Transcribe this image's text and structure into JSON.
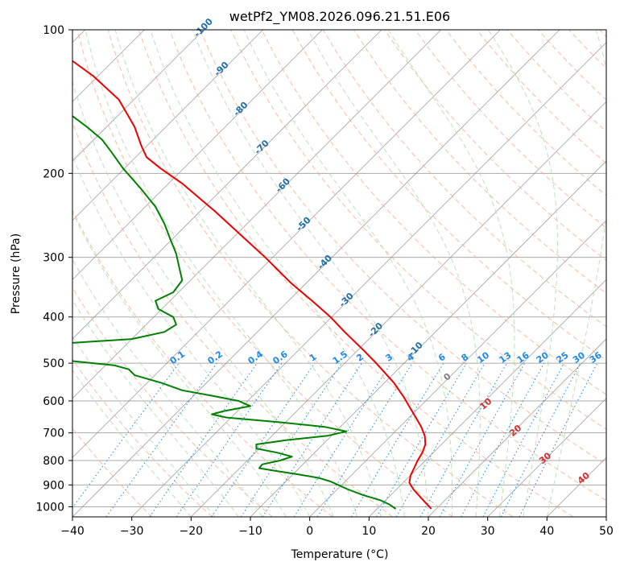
{
  "chart_data": {
    "type": "line",
    "title": "wetPf2_YM08.2026.096.21.51.E06",
    "xlabel": "Temperature (°C)",
    "ylabel": "Pressure (hPa)",
    "xlim": [
      -40,
      50
    ],
    "ylim": [
      1050,
      100
    ],
    "y_scale": "log",
    "skew_deg": 45,
    "grid": true,
    "x_ticks": [
      -40,
      -30,
      -20,
      -10,
      0,
      10,
      20,
      30,
      40,
      50
    ],
    "y_ticks": [
      100,
      200,
      300,
      400,
      500,
      600,
      700,
      800,
      900,
      1000
    ],
    "colors": {
      "temperature": "#ee0000",
      "dewpoint": "#008000",
      "dry_adiabat": "#f4a582",
      "moist_adiabat": "#b2dfb2",
      "mixing_ratio": "#1e88e5",
      "isotherm": "#808080",
      "wetbulb_label": "#d32f2f",
      "isotherm_label": "#1f6fa8"
    },
    "series": [
      {
        "name": "temperature",
        "points": [
          {
            "p": 1010,
            "t": 20.5
          },
          {
            "p": 980,
            "t": 19.5
          },
          {
            "p": 950,
            "t": 18.5
          },
          {
            "p": 920,
            "t": 17.5
          },
          {
            "p": 890,
            "t": 16.8
          },
          {
            "p": 860,
            "t": 17.0
          },
          {
            "p": 830,
            "t": 17.6
          },
          {
            "p": 800,
            "t": 18.2
          },
          {
            "p": 770,
            "t": 19.0
          },
          {
            "p": 740,
            "t": 19.5
          },
          {
            "p": 710,
            "t": 19.4
          },
          {
            "p": 680,
            "t": 18.8
          },
          {
            "p": 650,
            "t": 17.9
          },
          {
            "p": 620,
            "t": 16.9
          },
          {
            "p": 590,
            "t": 15.9
          },
          {
            "p": 550,
            "t": 14.2
          },
          {
            "p": 500,
            "t": 11.2
          },
          {
            "p": 470,
            "t": 9.1
          },
          {
            "p": 430,
            "t": 5.9
          },
          {
            "p": 400,
            "t": 3.5
          },
          {
            "p": 370,
            "t": 0.4
          },
          {
            "p": 340,
            "t": -3.1
          },
          {
            "p": 300,
            "t": -7.5
          },
          {
            "p": 270,
            "t": -11.5
          },
          {
            "p": 240,
            "t": -16.0
          },
          {
            "p": 210,
            "t": -21.5
          },
          {
            "p": 195,
            "t": -25.2
          },
          {
            "p": 185,
            "t": -27.5
          },
          {
            "p": 175,
            "t": -28.4
          },
          {
            "p": 160,
            "t": -29.5
          },
          {
            "p": 150,
            "t": -30.8
          },
          {
            "p": 140,
            "t": -32.2
          },
          {
            "p": 125,
            "t": -36.5
          },
          {
            "p": 115,
            "t": -40.5
          },
          {
            "p": 100,
            "t": -46.5
          }
        ]
      },
      {
        "name": "dewpoint",
        "points": [
          {
            "p": 1010,
            "t": 14.5
          },
          {
            "p": 990,
            "t": 13.5
          },
          {
            "p": 970,
            "t": 12.0
          },
          {
            "p": 945,
            "t": 9.0
          },
          {
            "p": 920,
            "t": 6.5
          },
          {
            "p": 900,
            "t": 4.8
          },
          {
            "p": 885,
            "t": 3.5
          },
          {
            "p": 870,
            "t": 1.5
          },
          {
            "p": 855,
            "t": -2.0
          },
          {
            "p": 840,
            "t": -6.0
          },
          {
            "p": 830,
            "t": -8.5
          },
          {
            "p": 815,
            "t": -8.0
          },
          {
            "p": 800,
            "t": -5.0
          },
          {
            "p": 785,
            "t": -3.0
          },
          {
            "p": 770,
            "t": -5.5
          },
          {
            "p": 755,
            "t": -9.0
          },
          {
            "p": 740,
            "t": -9.0
          },
          {
            "p": 725,
            "t": -4.0
          },
          {
            "p": 710,
            "t": 3.0
          },
          {
            "p": 695,
            "t": 6.2
          },
          {
            "p": 680,
            "t": 2.5
          },
          {
            "p": 665,
            "t": -5.0
          },
          {
            "p": 650,
            "t": -14.0
          },
          {
            "p": 640,
            "t": -16.5
          },
          {
            "p": 630,
            "t": -14.5
          },
          {
            "p": 615,
            "t": -10.0
          },
          {
            "p": 600,
            "t": -12.0
          },
          {
            "p": 585,
            "t": -16.5
          },
          {
            "p": 570,
            "t": -21.5
          },
          {
            "p": 550,
            "t": -25.0
          },
          {
            "p": 530,
            "t": -29.5
          },
          {
            "p": 515,
            "t": -30.5
          },
          {
            "p": 505,
            "t": -33.0
          },
          {
            "p": 495,
            "t": -40.0
          },
          {
            "p": 485,
            "t": -50.0
          },
          {
            "p": 475,
            "t": -58.0
          },
          {
            "p": 468,
            "t": -62.0
          },
          {
            "p": 462,
            "t": -55.0
          },
          {
            "p": 455,
            "t": -42.0
          },
          {
            "p": 445,
            "t": -30.0
          },
          {
            "p": 430,
            "t": -24.5
          },
          {
            "p": 415,
            "t": -22.5
          },
          {
            "p": 400,
            "t": -23.0
          },
          {
            "p": 385,
            "t": -25.5
          },
          {
            "p": 370,
            "t": -26.0
          },
          {
            "p": 355,
            "t": -23.0
          },
          {
            "p": 335,
            "t": -21.5
          },
          {
            "p": 315,
            "t": -22.0
          },
          {
            "p": 295,
            "t": -22.5
          },
          {
            "p": 275,
            "t": -23.5
          },
          {
            "p": 255,
            "t": -24.5
          },
          {
            "p": 235,
            "t": -26.0
          },
          {
            "p": 215,
            "t": -28.5
          },
          {
            "p": 195,
            "t": -31.5
          },
          {
            "p": 180,
            "t": -33.5
          },
          {
            "p": 170,
            "t": -35.0
          },
          {
            "p": 160,
            "t": -37.5
          },
          {
            "p": 150,
            "t": -40.5
          },
          {
            "p": 140,
            "t": -42.5
          },
          {
            "p": 130,
            "t": -43.5
          },
          {
            "p": 120,
            "t": -45.0
          },
          {
            "p": 110,
            "t": -47.0
          },
          {
            "p": 100,
            "t": -51.0
          }
        ]
      }
    ],
    "isotherm_labels": [
      "-100",
      "-90",
      "-80",
      "-70",
      "-60",
      "-50",
      "-40",
      "-30",
      "-20",
      "-10"
    ],
    "mixing_ratio_labels": [
      "0.1",
      "0.2",
      "0.4",
      "0.6",
      "1",
      "1.5",
      "2",
      "3",
      "4",
      "6",
      "8",
      "10",
      "13",
      "16",
      "20",
      "25",
      "30",
      "36"
    ],
    "wetbulb_labels": [
      "0",
      "10",
      "20",
      "30",
      "40"
    ]
  }
}
